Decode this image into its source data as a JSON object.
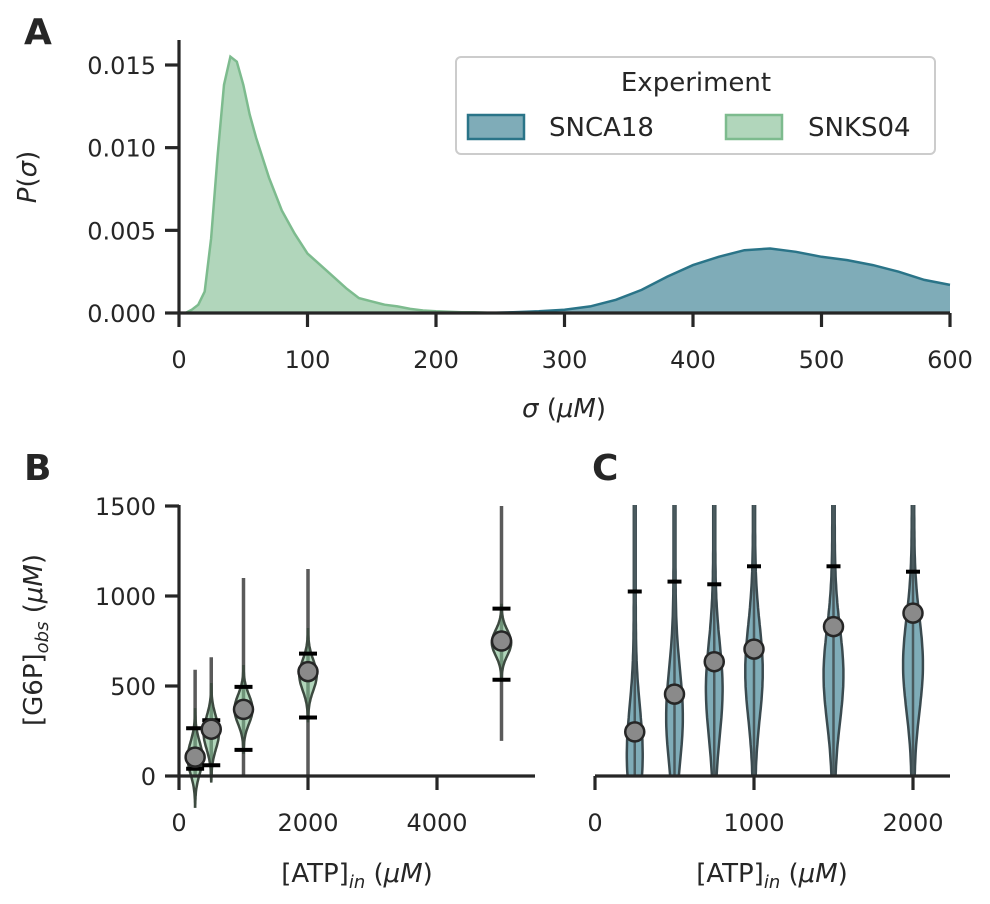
{
  "colors": {
    "snca18": "#2a7488",
    "snks04": "#7dbb8e",
    "dark": "#262626",
    "median": "#000000",
    "point": "#8a8a8a"
  },
  "panels": {
    "a": "A",
    "b": "B",
    "c": "C"
  },
  "chart_data": [
    {
      "panel": "A",
      "type": "area",
      "xlabel": "σ (μM)",
      "ylabel": "P(σ)",
      "xlim": [
        0,
        600
      ],
      "ylim": [
        0,
        0.016
      ],
      "xticks": [
        "0",
        "100",
        "200",
        "300",
        "400",
        "500",
        "600"
      ],
      "yticks": [
        "0.000",
        "0.005",
        "0.010",
        "0.015"
      ],
      "legend": {
        "title": "Experiment",
        "placement": "top-right"
      },
      "series": [
        {
          "name": "SNCA18",
          "color": "#2a7488",
          "x": [
            240,
            260,
            280,
            300,
            320,
            340,
            360,
            380,
            400,
            420,
            440,
            460,
            480,
            500,
            520,
            540,
            560,
            580,
            600
          ],
          "y": [
            0,
            5e-05,
            0.0001,
            0.0002,
            0.0004,
            0.0008,
            0.0014,
            0.0022,
            0.0029,
            0.0034,
            0.0038,
            0.0039,
            0.0037,
            0.0034,
            0.0032,
            0.0029,
            0.0025,
            0.002,
            0.0017
          ]
        },
        {
          "name": "SNKS04",
          "color": "#7dbb8e",
          "x": [
            5,
            10,
            15,
            20,
            25,
            30,
            35,
            40,
            45,
            50,
            55,
            60,
            70,
            80,
            90,
            100,
            110,
            120,
            130,
            140,
            150,
            160,
            170,
            180,
            190,
            200,
            210,
            220,
            230,
            240,
            250
          ],
          "y": [
            0,
            0.0002,
            0.0005,
            0.0013,
            0.0045,
            0.0095,
            0.0138,
            0.0155,
            0.0152,
            0.0138,
            0.012,
            0.0106,
            0.0082,
            0.0062,
            0.0048,
            0.0036,
            0.0029,
            0.0022,
            0.0015,
            0.0009,
            0.0007,
            0.0005,
            0.0004,
            0.00025,
            0.00015,
            0.0001,
            8e-05,
            5e-05,
            4e-05,
            2e-05,
            0
          ]
        }
      ]
    },
    {
      "panel": "B",
      "type": "violin",
      "xlabel": "[ATP]in (μM)",
      "ylabel": "[G6P]obs (μM)",
      "xlim": [
        0,
        5400
      ],
      "ylim": [
        0,
        1500
      ],
      "xticks": [
        "0",
        "2000",
        "4000"
      ],
      "yticks": [
        "0",
        "500",
        "1000",
        "1500"
      ],
      "violins": [
        {
          "x": 250,
          "point": 105,
          "lo": 40,
          "hi": 265,
          "min": 0,
          "max": 590,
          "width": 230,
          "center": 100,
          "spread": 90
        },
        {
          "x": 500,
          "point": 260,
          "lo": 60,
          "hi": 310,
          "min": 0,
          "max": 660,
          "width": 240,
          "center": 240,
          "spread": 90
        },
        {
          "x": 1000,
          "point": 370,
          "lo": 145,
          "hi": 495,
          "min": 0,
          "max": 1100,
          "width": 280,
          "center": 370,
          "spread": 80
        },
        {
          "x": 2000,
          "point": 580,
          "lo": 325,
          "hi": 680,
          "min": 0,
          "max": 1150,
          "width": 270,
          "center": 560,
          "spread": 85
        },
        {
          "x": 5000,
          "point": 750,
          "lo": 535,
          "hi": 930,
          "min": 195,
          "max": 1500,
          "width": 300,
          "center": 740,
          "spread": 70
        }
      ]
    },
    {
      "panel": "C",
      "type": "violin",
      "xlabel": "[ATP]in (μM)",
      "ylabel": "",
      "xlim": [
        0,
        2200
      ],
      "ylim": [
        0,
        1500
      ],
      "xticks": [
        "0",
        "1000",
        "2000"
      ],
      "violins": [
        {
          "x": 250,
          "point": 245,
          "hi": 1025,
          "width": 100,
          "center": 120
        },
        {
          "x": 500,
          "point": 455,
          "hi": 1080,
          "width": 105,
          "center": 330
        },
        {
          "x": 750,
          "point": 635,
          "hi": 1065,
          "width": 105,
          "center": 480
        },
        {
          "x": 1000,
          "point": 705,
          "hi": 1165,
          "width": 110,
          "center": 580
        },
        {
          "x": 1500,
          "point": 830,
          "hi": 1165,
          "width": 125,
          "center": 560
        },
        {
          "x": 2000,
          "point": 905,
          "hi": 1135,
          "width": 125,
          "center": 620
        }
      ]
    }
  ]
}
